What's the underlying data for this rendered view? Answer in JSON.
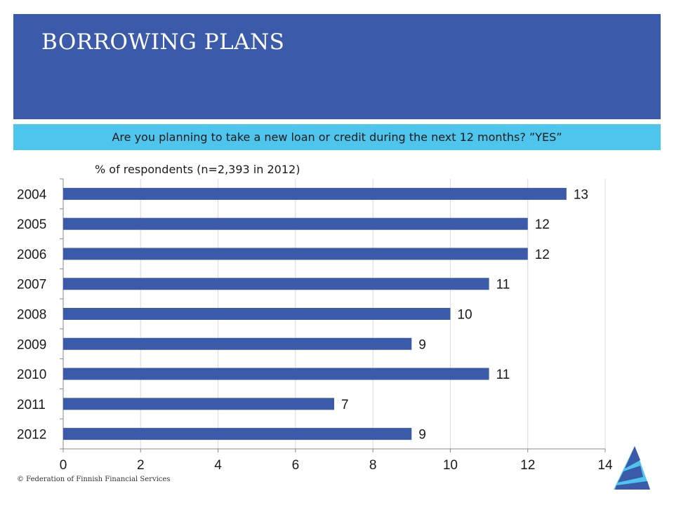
{
  "header": {
    "title": "BORROWING PLANS"
  },
  "question": "Are you planning to take a new loan or credit during the next 12 months? ”YES”",
  "subtitle": "% of respondents (n=2,393 in 2012)",
  "footer": "© Federation of Finnish Financial Services",
  "colors": {
    "header": "#3b5aa9",
    "question_band": "#4ec5ec",
    "bar": "#3b5aa9"
  },
  "chart_data": {
    "type": "bar",
    "orientation": "horizontal",
    "categories": [
      "2004",
      "2005",
      "2006",
      "2007",
      "2008",
      "2009",
      "2010",
      "2011",
      "2012"
    ],
    "values": [
      13,
      12,
      12,
      11,
      10,
      9,
      11,
      7,
      9
    ],
    "data_labels": [
      "13",
      "12",
      "12",
      "11",
      "10",
      "9",
      "11",
      "7",
      "9"
    ],
    "xlim": [
      0,
      14
    ],
    "x_ticks": [
      "0",
      "2",
      "4",
      "6",
      "8",
      "10",
      "12",
      "14"
    ],
    "grid": true,
    "legend": "none"
  }
}
